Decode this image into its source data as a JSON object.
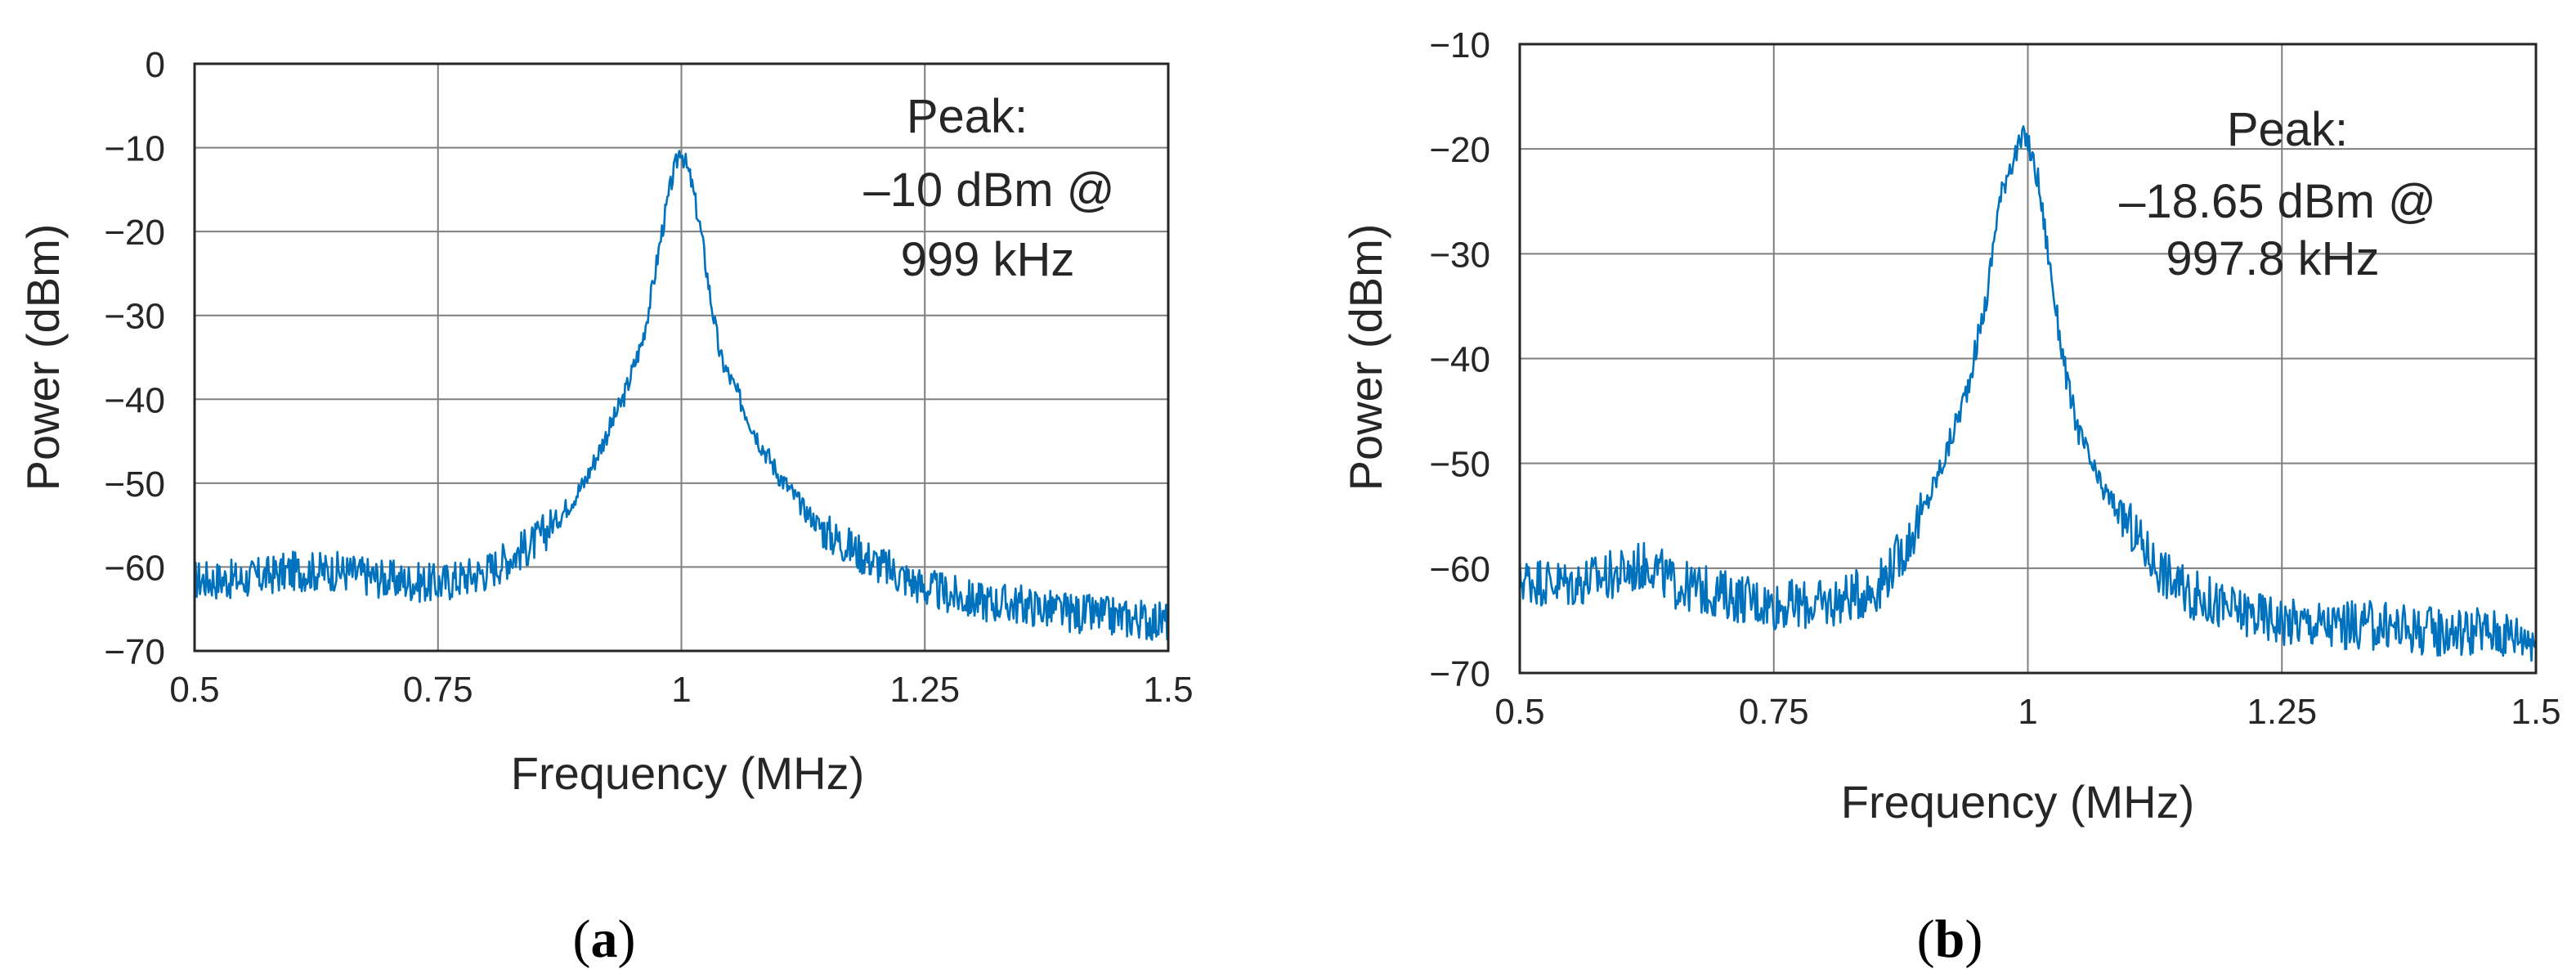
{
  "chart_data": [
    {
      "type": "line",
      "panel_label": "a",
      "title": "",
      "xlabel": "Frequency (MHz)",
      "ylabel": "Power (dBm)",
      "xlim": [
        0.5,
        1.5
      ],
      "ylim": [
        -70,
        0
      ],
      "x_ticks": [
        0.5,
        0.75,
        1,
        1.25,
        1.5
      ],
      "y_ticks": [
        0,
        -10,
        -20,
        -30,
        -40,
        -50,
        -60,
        -70
      ],
      "grid": true,
      "annotation": [
        "Peak:",
        "–10 dBm @",
        "999 kHz"
      ],
      "series": [
        {
          "name": "spectrum",
          "color": "#0072bd",
          "x": [
            0.5,
            0.55,
            0.6,
            0.65,
            0.7,
            0.75,
            0.8,
            0.85,
            0.875,
            0.9,
            0.92,
            0.94,
            0.96,
            0.97,
            0.98,
            0.99,
            0.999,
            1.01,
            1.02,
            1.03,
            1.04,
            1.06,
            1.08,
            1.1,
            1.125,
            1.15,
            1.2,
            1.25,
            1.3,
            1.35,
            1.4,
            1.45,
            1.5
          ],
          "values": [
            -61.5,
            -61.5,
            -60.5,
            -60.5,
            -61.5,
            -62,
            -60.5,
            -57,
            -54,
            -50,
            -45,
            -40,
            -33,
            -27,
            -20,
            -14,
            -10,
            -14,
            -20,
            -28,
            -35,
            -40,
            -45,
            -49,
            -53,
            -56,
            -59.5,
            -62.5,
            -64,
            -64.5,
            -65.5,
            -66,
            -66.5
          ]
        }
      ]
    },
    {
      "type": "line",
      "panel_label": "b",
      "title": "",
      "xlabel": "Frequency (MHz)",
      "ylabel": "Power (dBm)",
      "xlim": [
        0.5,
        1.5
      ],
      "ylim": [
        -70,
        -10
      ],
      "x_ticks": [
        0.5,
        0.75,
        1,
        1.25,
        1.5
      ],
      "y_ticks": [
        -10,
        -20,
        -30,
        -40,
        -50,
        -60,
        -70
      ],
      "grid": true,
      "annotation": [
        "Peak:",
        "–18.65 dBm @",
        "997.8 kHz"
      ],
      "series": [
        {
          "name": "spectrum",
          "color": "#0072bd",
          "x": [
            0.5,
            0.55,
            0.6,
            0.63,
            0.65,
            0.7,
            0.75,
            0.8,
            0.85,
            0.88,
            0.9,
            0.92,
            0.94,
            0.96,
            0.97,
            0.98,
            0.9978,
            1.01,
            1.02,
            1.03,
            1.04,
            1.05,
            1.07,
            1.1,
            1.125,
            1.15,
            1.2,
            1.25,
            1.3,
            1.35,
            1.4,
            1.45,
            1.5
          ],
          "values": [
            -61,
            -61.5,
            -60.5,
            -59.5,
            -61.5,
            -62.5,
            -63.5,
            -63.5,
            -62,
            -58,
            -54,
            -49,
            -43,
            -34,
            -26,
            -22,
            -18.65,
            -23,
            -30,
            -37,
            -43,
            -47,
            -52,
            -56,
            -59.5,
            -62,
            -64,
            -65,
            -65.5,
            -65.5,
            -66,
            -66,
            -66.5
          ]
        }
      ]
    }
  ]
}
